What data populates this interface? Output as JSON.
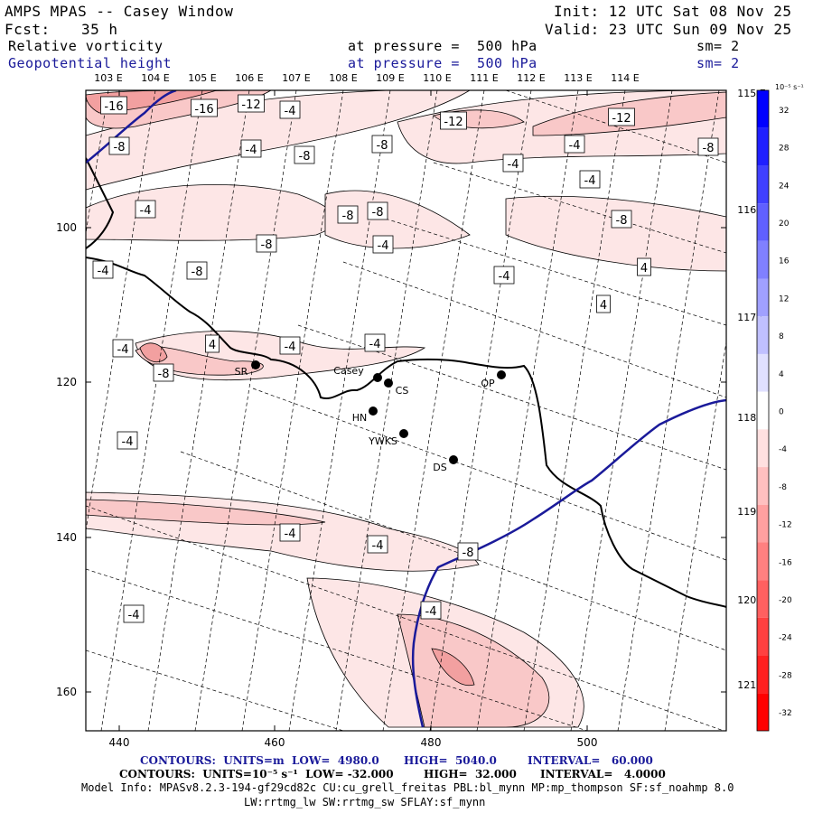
{
  "header": {
    "title": "AMPS MPAS -- Casey Window",
    "init": "Init: 12 UTC Sat 08 Nov 25",
    "fcst_label": "Fcst:",
    "fcst_value": "35 h",
    "valid": "Valid: 23 UTC Sun 09 Nov 25",
    "field1": {
      "name": "Relative vorticity",
      "level": "at pressure =  500 hPa",
      "smooth": "sm= 2"
    },
    "field2": {
      "name": "Geopotential height",
      "level": "at pressure =  500 hPa",
      "smooth": "sm= 2"
    }
  },
  "colors": {
    "contour_line": "#1a1a9a",
    "coast": "#000000",
    "neg_fill_light": "#fde6e6",
    "neg_fill_mid": "#f9c8c8",
    "neg_fill_strong": "#f2a0a0"
  },
  "chart_data": {
    "type": "heatmap",
    "x_ticks": [
      "440",
      "460",
      "480",
      "500"
    ],
    "y_ticks": [
      "100",
      "120",
      "140",
      "160"
    ],
    "top_lon_labels": [
      "103 E",
      "104 E",
      "105 E",
      "106 E",
      "107 E",
      "108 E",
      "109 E",
      "110 E",
      "111 E",
      "112 E",
      "113 E",
      "114 E"
    ],
    "right_lon_labels": [
      "115 E",
      "116 E",
      "117 E",
      "118 E",
      "119 E",
      "120 E",
      "121 E"
    ],
    "colorbar": {
      "unit": "10⁻⁵ s⁻¹",
      "levels": [
        32,
        28,
        24,
        20,
        16,
        12,
        8,
        4,
        0,
        -4,
        -8,
        -12,
        -16,
        -20,
        -24,
        -28,
        -32
      ],
      "colors": [
        "#0000ff",
        "#2020ff",
        "#4040ff",
        "#6060ff",
        "#8080ff",
        "#a0a0ff",
        "#c0c0ff",
        "#e0e0ff",
        "#ffffff",
        "#ffe0e0",
        "#ffc0c0",
        "#ffa0a0",
        "#ff8080",
        "#ff6060",
        "#ff4040",
        "#ff2020",
        "#ff0000"
      ]
    },
    "contour_labels": [
      "-16",
      "-16",
      "-12",
      "-4",
      "-12",
      "-12",
      "-8",
      "-4",
      "-8",
      "-8",
      "-4",
      "-4",
      "-4",
      "-8",
      "-4",
      "-8",
      "-8",
      "-8",
      "-4",
      "-4",
      "-8",
      "-4",
      "4",
      "4",
      "-4",
      "4",
      "-4",
      "-4",
      "-8",
      "-4",
      "-4",
      "-4",
      "-8",
      "-4",
      "-4",
      "-8"
    ],
    "stations": [
      "Casey",
      "CS",
      "SR",
      "HN",
      "YWKS",
      "DS",
      "OP"
    ],
    "contours_height": {
      "units": "m",
      "low": "4980.0",
      "high": "5040.0",
      "interval": "60.000"
    },
    "contours_vort": {
      "units": "10⁻⁵ s⁻¹",
      "low": "-32.000",
      "high": "32.000",
      "interval": "4.0000"
    }
  },
  "footer": {
    "line1_units": "CONTOURS:  UNITS=m  LOW=  4980.0",
    "line1_high": "HIGH=  5040.0",
    "line1_int": "INTERVAL=   60.000",
    "line2_units": "CONTOURS:  UNITS=10⁻⁵ s⁻¹  LOW= -32.000",
    "line2_high": "HIGH=  32.000",
    "line2_int": "INTERVAL=   4.0000",
    "model_info": "Model Info: MPASv8.2.3-194-gf29cd82c CU:cu_grell_freitas PBL:bl_mynn MP:mp_thompson SF:sf_noahmp 8.0",
    "model_info2": "LW:rrtmg_lw SW:rrtmg_sw SFLAY:sf_mynn"
  }
}
